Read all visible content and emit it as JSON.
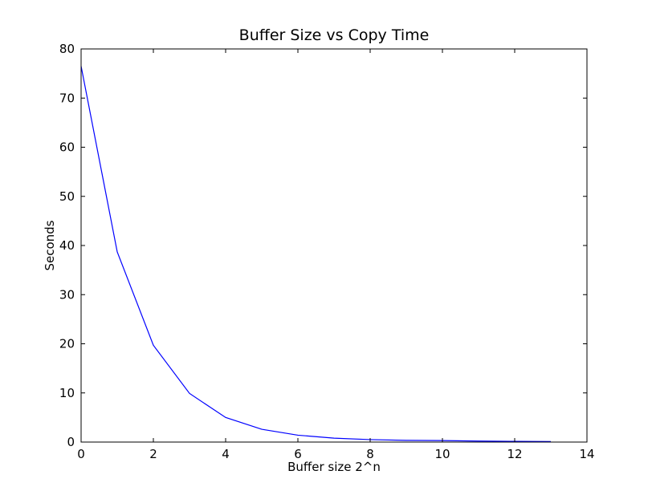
{
  "chart_data": {
    "type": "line",
    "title": "Buffer Size vs Copy Time",
    "xlabel": "Buffer size 2^n",
    "ylabel": "Seconds",
    "xlim": [
      0,
      14
    ],
    "ylim": [
      0,
      80
    ],
    "xticks": [
      0,
      2,
      4,
      6,
      8,
      10,
      12,
      14
    ],
    "yticks": [
      0,
      10,
      20,
      30,
      40,
      50,
      60,
      70,
      80
    ],
    "grid": false,
    "series": [
      {
        "color": "#0000ff",
        "x": [
          0,
          1,
          2,
          3,
          4,
          5,
          6,
          7,
          8,
          9,
          10,
          11,
          12,
          13
        ],
        "y": [
          76.5,
          38.7,
          19.7,
          9.9,
          5.0,
          2.6,
          1.4,
          0.8,
          0.5,
          0.35,
          0.3,
          0.2,
          0.15,
          0.1
        ]
      }
    ]
  }
}
